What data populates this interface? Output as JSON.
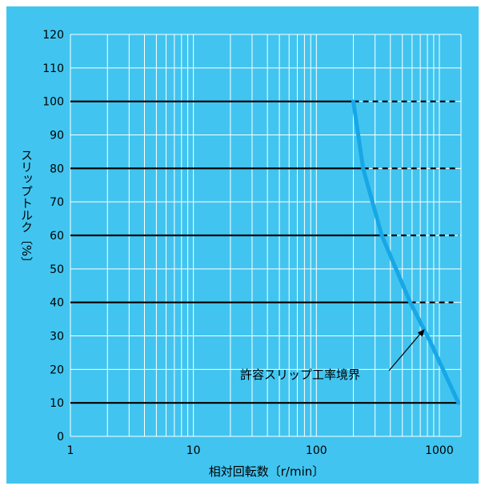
{
  "colors": {
    "background": "#41c5f0",
    "grid": "#ffffff",
    "reference_lines": "#000000",
    "boundary_curve": "#18a7e6"
  },
  "chart_data": {
    "type": "line",
    "xscale": "log",
    "xlim": [
      1,
      1500
    ],
    "ylim": [
      0,
      120
    ],
    "grid": true,
    "xlabel": "相対回転数〔r/min〕",
    "ylabel": "スリップトルク〔%〕",
    "x_ticks": [
      "1",
      "10",
      "100",
      "1000"
    ],
    "y_ticks": [
      "0",
      "10",
      "20",
      "30",
      "40",
      "50",
      "60",
      "70",
      "80",
      "90",
      "100",
      "110",
      "120"
    ],
    "annotation": "許容スリップ工率境界",
    "series": [
      {
        "values": [
          {
            "x": 200,
            "y": 100
          },
          {
            "x": 240,
            "y": 80
          },
          {
            "x": 340,
            "y": 60
          },
          {
            "x": 580,
            "y": 40
          },
          {
            "x": 850,
            "y": 28
          },
          {
            "x": 1430,
            "y": 10
          }
        ]
      }
    ],
    "reference_lines": [
      {
        "y": 100,
        "solid_to": 200,
        "dashed_to": 1400
      },
      {
        "y": 80,
        "solid_to": 240,
        "dashed_to": 1400
      },
      {
        "y": 60,
        "solid_to": 340,
        "dashed_to": 1450
      },
      {
        "y": 40,
        "solid_to": 580,
        "dashed_to": 1300
      },
      {
        "y": 10,
        "solid_to": 1430,
        "dashed_to": 1430
      }
    ]
  }
}
